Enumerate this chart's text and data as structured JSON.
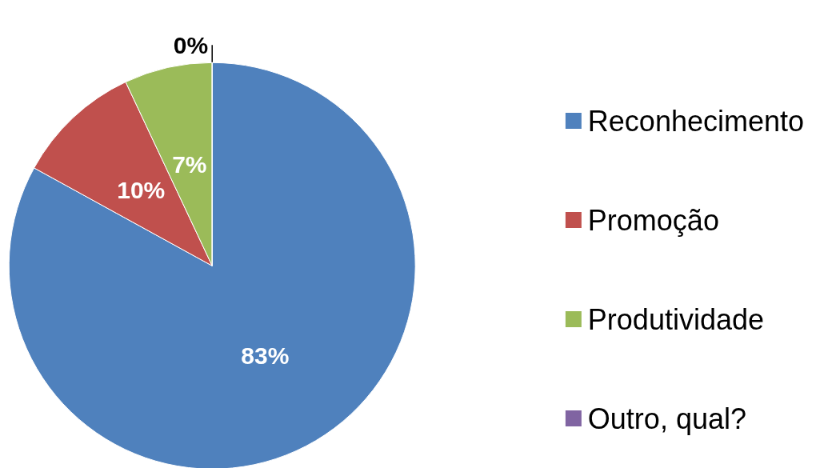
{
  "chart_data": {
    "type": "pie",
    "categories": [
      "Reconhecimento",
      "Promoção",
      "Produtividade",
      "Outro, qual?"
    ],
    "values": [
      83,
      10,
      7,
      0
    ],
    "colors": [
      "#4f81bd",
      "#c0504d",
      "#9bbb59",
      "#8064a2"
    ],
    "value_labels": [
      "83%",
      "10%",
      "7%",
      "0%"
    ],
    "legend": "right"
  }
}
